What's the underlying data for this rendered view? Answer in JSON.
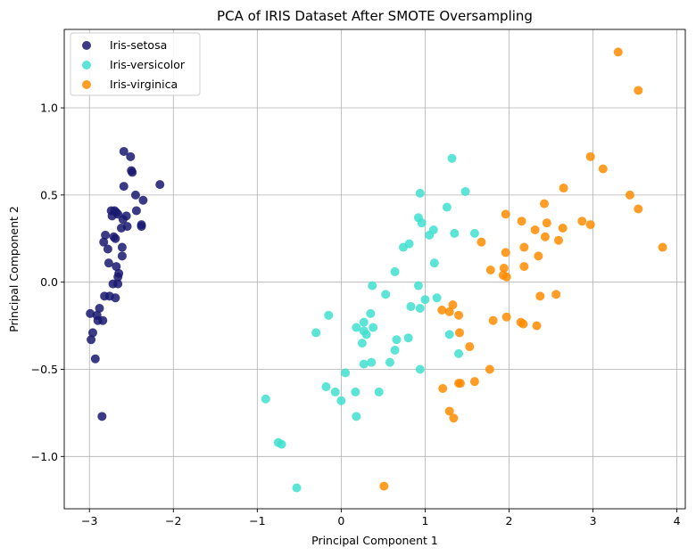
{
  "chart_data": {
    "type": "scatter",
    "title": "PCA of IRIS Dataset After SMOTE Oversampling",
    "xlabel": "Principal Component 1",
    "ylabel": "Principal Component 2",
    "xlim": [
      -3.3,
      4.1
    ],
    "ylim": [
      -1.3,
      1.45
    ],
    "xticks": [
      -3,
      -2,
      -1,
      0,
      1,
      2,
      3,
      4
    ],
    "yticks": [
      -1.0,
      -0.5,
      0.0,
      0.5,
      1.0
    ],
    "xtick_labels": [
      "−3",
      "−2",
      "−1",
      "0",
      "1",
      "2",
      "3",
      "4"
    ],
    "ytick_labels": [
      "−1.0",
      "−0.5",
      "0.0",
      "0.5",
      "1.0"
    ],
    "grid": true,
    "legend_position": "top-left",
    "series": [
      {
        "name": "Iris-setosa",
        "color": "#191970",
        "points": [
          [
            -2.59,
            0.75
          ],
          [
            -2.51,
            0.72
          ],
          [
            -2.5,
            0.64
          ],
          [
            -2.49,
            0.63
          ],
          [
            -2.16,
            0.56
          ],
          [
            -2.59,
            0.55
          ],
          [
            -2.45,
            0.5
          ],
          [
            -2.36,
            0.47
          ],
          [
            -2.44,
            0.41
          ],
          [
            -2.7,
            0.41
          ],
          [
            -2.74,
            0.41
          ],
          [
            -2.68,
            0.4
          ],
          [
            -2.66,
            0.39
          ],
          [
            -2.73,
            0.38
          ],
          [
            -2.56,
            0.38
          ],
          [
            -2.6,
            0.36
          ],
          [
            -2.38,
            0.33
          ],
          [
            -2.38,
            0.32
          ],
          [
            -2.55,
            0.32
          ],
          [
            -2.62,
            0.31
          ],
          [
            -2.81,
            0.27
          ],
          [
            -2.71,
            0.26
          ],
          [
            -2.69,
            0.25
          ],
          [
            -2.83,
            0.23
          ],
          [
            -2.61,
            0.2
          ],
          [
            -2.78,
            0.19
          ],
          [
            -2.61,
            0.15
          ],
          [
            -2.77,
            0.11
          ],
          [
            -2.68,
            0.09
          ],
          [
            -2.65,
            0.05
          ],
          [
            -2.66,
            0.03
          ],
          [
            -2.72,
            -0.01
          ],
          [
            -2.66,
            -0.01
          ],
          [
            -2.82,
            -0.08
          ],
          [
            -2.76,
            -0.08
          ],
          [
            -2.69,
            -0.09
          ],
          [
            -2.99,
            -0.18
          ],
          [
            -2.91,
            -0.19
          ],
          [
            -2.88,
            -0.15
          ],
          [
            -2.9,
            -0.22
          ],
          [
            -2.84,
            -0.22
          ],
          [
            -2.96,
            -0.29
          ],
          [
            -2.98,
            -0.33
          ],
          [
            -2.93,
            -0.44
          ],
          [
            -2.85,
            -0.77
          ]
        ]
      },
      {
        "name": "Iris-versicolor",
        "color": "#40E0D0",
        "points": [
          [
            1.32,
            0.71
          ],
          [
            1.48,
            0.52
          ],
          [
            0.94,
            0.51
          ],
          [
            0.92,
            0.37
          ],
          [
            0.96,
            0.34
          ],
          [
            1.26,
            0.43
          ],
          [
            1.59,
            0.28
          ],
          [
            1.35,
            0.28
          ],
          [
            1.1,
            0.3
          ],
          [
            1.05,
            0.27
          ],
          [
            0.81,
            0.22
          ],
          [
            0.74,
            0.2
          ],
          [
            1.11,
            0.11
          ],
          [
            0.64,
            0.06
          ],
          [
            0.37,
            -0.02
          ],
          [
            0.92,
            -0.02
          ],
          [
            0.53,
            -0.07
          ],
          [
            1.0,
            -0.1
          ],
          [
            1.14,
            -0.09
          ],
          [
            0.83,
            -0.14
          ],
          [
            0.94,
            -0.15
          ],
          [
            0.35,
            -0.18
          ],
          [
            -0.15,
            -0.19
          ],
          [
            0.27,
            -0.23
          ],
          [
            0.38,
            -0.26
          ],
          [
            0.18,
            -0.26
          ],
          [
            0.27,
            -0.28
          ],
          [
            0.3,
            -0.3
          ],
          [
            1.29,
            -0.3
          ],
          [
            -0.3,
            -0.29
          ],
          [
            0.66,
            -0.33
          ],
          [
            0.8,
            -0.32
          ],
          [
            0.25,
            -0.35
          ],
          [
            0.64,
            -0.39
          ],
          [
            1.4,
            -0.41
          ],
          [
            0.36,
            -0.46
          ],
          [
            0.27,
            -0.47
          ],
          [
            0.58,
            -0.46
          ],
          [
            0.94,
            -0.5
          ],
          [
            0.05,
            -0.52
          ],
          [
            -0.18,
            -0.6
          ],
          [
            0.17,
            -0.63
          ],
          [
            0.45,
            -0.63
          ],
          [
            -0.07,
            -0.63
          ],
          [
            0.0,
            -0.68
          ],
          [
            -0.9,
            -0.67
          ],
          [
            0.18,
            -0.77
          ],
          [
            -0.75,
            -0.92
          ],
          [
            -0.71,
            -0.93
          ],
          [
            -0.53,
            -1.18
          ]
        ]
      },
      {
        "name": "Iris-virginica",
        "color": "#FF8C00",
        "points": [
          [
            3.3,
            1.32
          ],
          [
            3.54,
            1.1
          ],
          [
            2.97,
            0.72
          ],
          [
            3.12,
            0.65
          ],
          [
            2.65,
            0.54
          ],
          [
            3.44,
            0.5
          ],
          [
            2.42,
            0.45
          ],
          [
            3.54,
            0.42
          ],
          [
            1.96,
            0.39
          ],
          [
            2.15,
            0.35
          ],
          [
            2.45,
            0.34
          ],
          [
            2.87,
            0.35
          ],
          [
            2.97,
            0.33
          ],
          [
            2.64,
            0.31
          ],
          [
            2.31,
            0.3
          ],
          [
            2.43,
            0.26
          ],
          [
            2.59,
            0.24
          ],
          [
            1.67,
            0.23
          ],
          [
            1.96,
            0.17
          ],
          [
            2.18,
            0.2
          ],
          [
            3.83,
            0.2
          ],
          [
            2.35,
            0.15
          ],
          [
            2.18,
            0.09
          ],
          [
            1.94,
            0.08
          ],
          [
            1.78,
            0.07
          ],
          [
            1.93,
            0.04
          ],
          [
            1.97,
            0.03
          ],
          [
            2.56,
            -0.07
          ],
          [
            2.37,
            -0.08
          ],
          [
            1.33,
            -0.13
          ],
          [
            1.2,
            -0.16
          ],
          [
            1.29,
            -0.17
          ],
          [
            1.4,
            -0.19
          ],
          [
            1.97,
            -0.2
          ],
          [
            1.81,
            -0.22
          ],
          [
            2.14,
            -0.23
          ],
          [
            2.17,
            -0.24
          ],
          [
            2.33,
            -0.25
          ],
          [
            1.41,
            -0.29
          ],
          [
            1.53,
            -0.37
          ],
          [
            1.77,
            -0.5
          ],
          [
            1.59,
            -0.57
          ],
          [
            1.4,
            -0.58
          ],
          [
            1.42,
            -0.58
          ],
          [
            1.21,
            -0.61
          ],
          [
            1.29,
            -0.74
          ],
          [
            1.34,
            -0.78
          ],
          [
            0.51,
            -1.17
          ]
        ]
      }
    ]
  }
}
